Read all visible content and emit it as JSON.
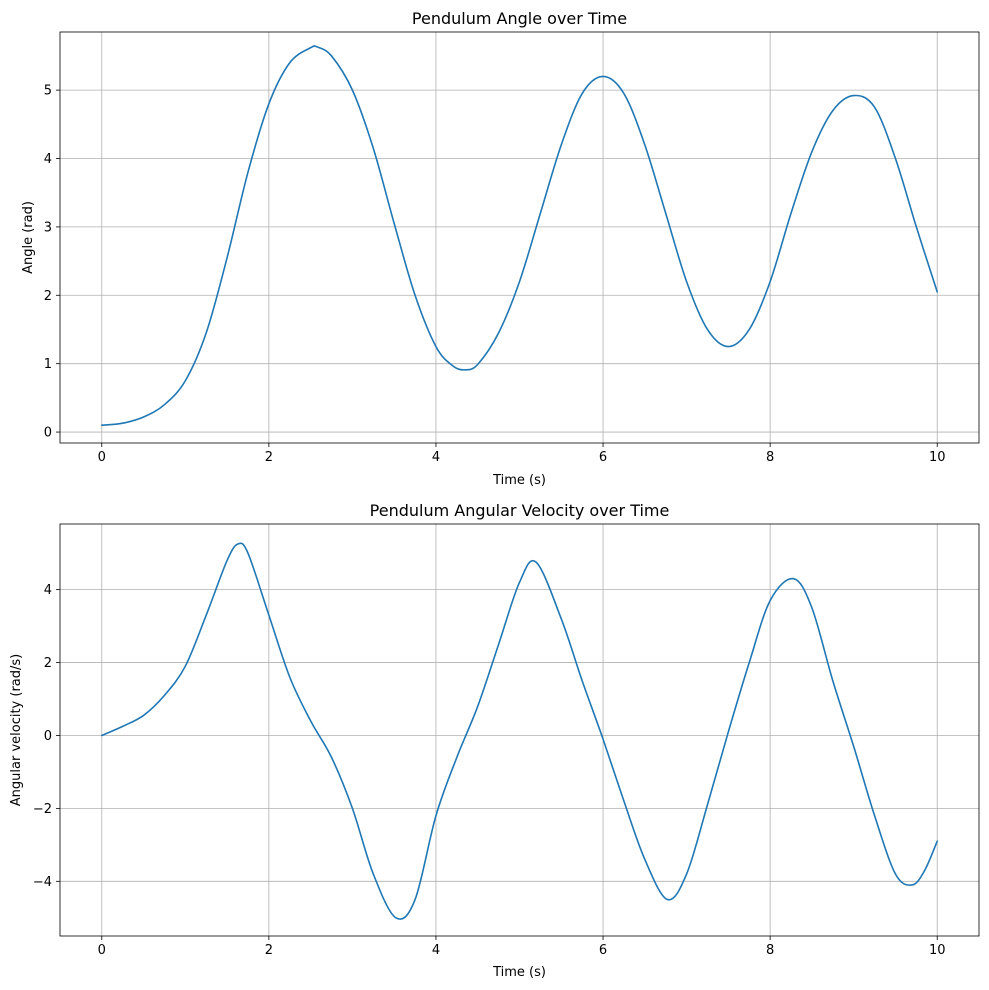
{
  "chart_data": [
    {
      "type": "line",
      "title": "Pendulum Angle over Time",
      "xlabel": "Time (s)",
      "ylabel": "Angle (rad)",
      "xlim": [
        -0.5,
        10.5
      ],
      "ylim": [
        -0.16,
        5.85
      ],
      "xticks": [
        0,
        2,
        4,
        6,
        8,
        10
      ],
      "xtick_labels": [
        "0",
        "2",
        "4",
        "6",
        "8",
        "10"
      ],
      "yticks": [
        0,
        1,
        2,
        3,
        4,
        5
      ],
      "ytick_labels": [
        "0",
        "1",
        "2",
        "3",
        "4",
        "5"
      ],
      "grid": true,
      "series": [
        {
          "color": "#1f77b4",
          "x": [
            0,
            0.25,
            0.5,
            0.75,
            1.0,
            1.25,
            1.5,
            1.75,
            2.0,
            2.25,
            2.5,
            2.58,
            2.75,
            3.0,
            3.25,
            3.5,
            3.75,
            4.0,
            4.2,
            4.35,
            4.5,
            4.75,
            5.0,
            5.25,
            5.5,
            5.75,
            6.0,
            6.25,
            6.5,
            6.75,
            7.0,
            7.25,
            7.5,
            7.75,
            8.0,
            8.25,
            8.5,
            8.75,
            9.0,
            9.25,
            9.5,
            9.75,
            10.0
          ],
          "y": [
            0.1,
            0.13,
            0.22,
            0.4,
            0.75,
            1.45,
            2.55,
            3.8,
            4.8,
            5.4,
            5.62,
            5.63,
            5.5,
            5.0,
            4.15,
            3.05,
            2.0,
            1.25,
            0.97,
            0.91,
            0.99,
            1.45,
            2.2,
            3.2,
            4.2,
            4.95,
            5.2,
            4.95,
            4.2,
            3.2,
            2.2,
            1.5,
            1.25,
            1.5,
            2.2,
            3.2,
            4.1,
            4.7,
            4.92,
            4.75,
            4.0,
            3.0,
            2.05
          ]
        }
      ]
    },
    {
      "type": "line",
      "title": "Pendulum Angular Velocity over Time",
      "xlabel": "Time (s)",
      "ylabel": "Angular velocity (rad/s)",
      "xlim": [
        -0.5,
        10.5
      ],
      "ylim": [
        -5.5,
        5.8
      ],
      "xticks": [
        0,
        2,
        4,
        6,
        8,
        10
      ],
      "xtick_labels": [
        "0",
        "2",
        "4",
        "6",
        "8",
        "10"
      ],
      "yticks": [
        -4,
        -2,
        0,
        2,
        4
      ],
      "ytick_labels": [
        "−4",
        "−2",
        "0",
        "2",
        "4"
      ],
      "grid": true,
      "series": [
        {
          "color": "#1f77b4",
          "x": [
            0,
            0.25,
            0.5,
            0.75,
            1.0,
            1.25,
            1.5,
            1.63,
            1.75,
            2.0,
            2.25,
            2.5,
            2.75,
            3.0,
            3.25,
            3.52,
            3.75,
            4.0,
            4.25,
            4.5,
            4.75,
            5.0,
            5.2,
            5.5,
            5.75,
            6.0,
            6.25,
            6.5,
            6.77,
            7.0,
            7.25,
            7.5,
            7.75,
            8.0,
            8.28,
            8.5,
            8.75,
            9.0,
            9.25,
            9.5,
            9.7,
            9.85,
            10.0
          ],
          "y": [
            0,
            0.25,
            0.55,
            1.1,
            1.9,
            3.3,
            4.8,
            5.25,
            5.0,
            3.3,
            1.6,
            0.4,
            -0.6,
            -2.0,
            -3.8,
            -5.0,
            -4.5,
            -2.2,
            -0.6,
            0.8,
            2.5,
            4.2,
            4.75,
            3.2,
            1.5,
            -0.1,
            -1.8,
            -3.4,
            -4.5,
            -3.8,
            -1.9,
            0.1,
            2.0,
            3.7,
            4.3,
            3.5,
            1.5,
            -0.3,
            -2.2,
            -3.8,
            -4.1,
            -3.7,
            -2.9
          ]
        }
      ]
    }
  ]
}
